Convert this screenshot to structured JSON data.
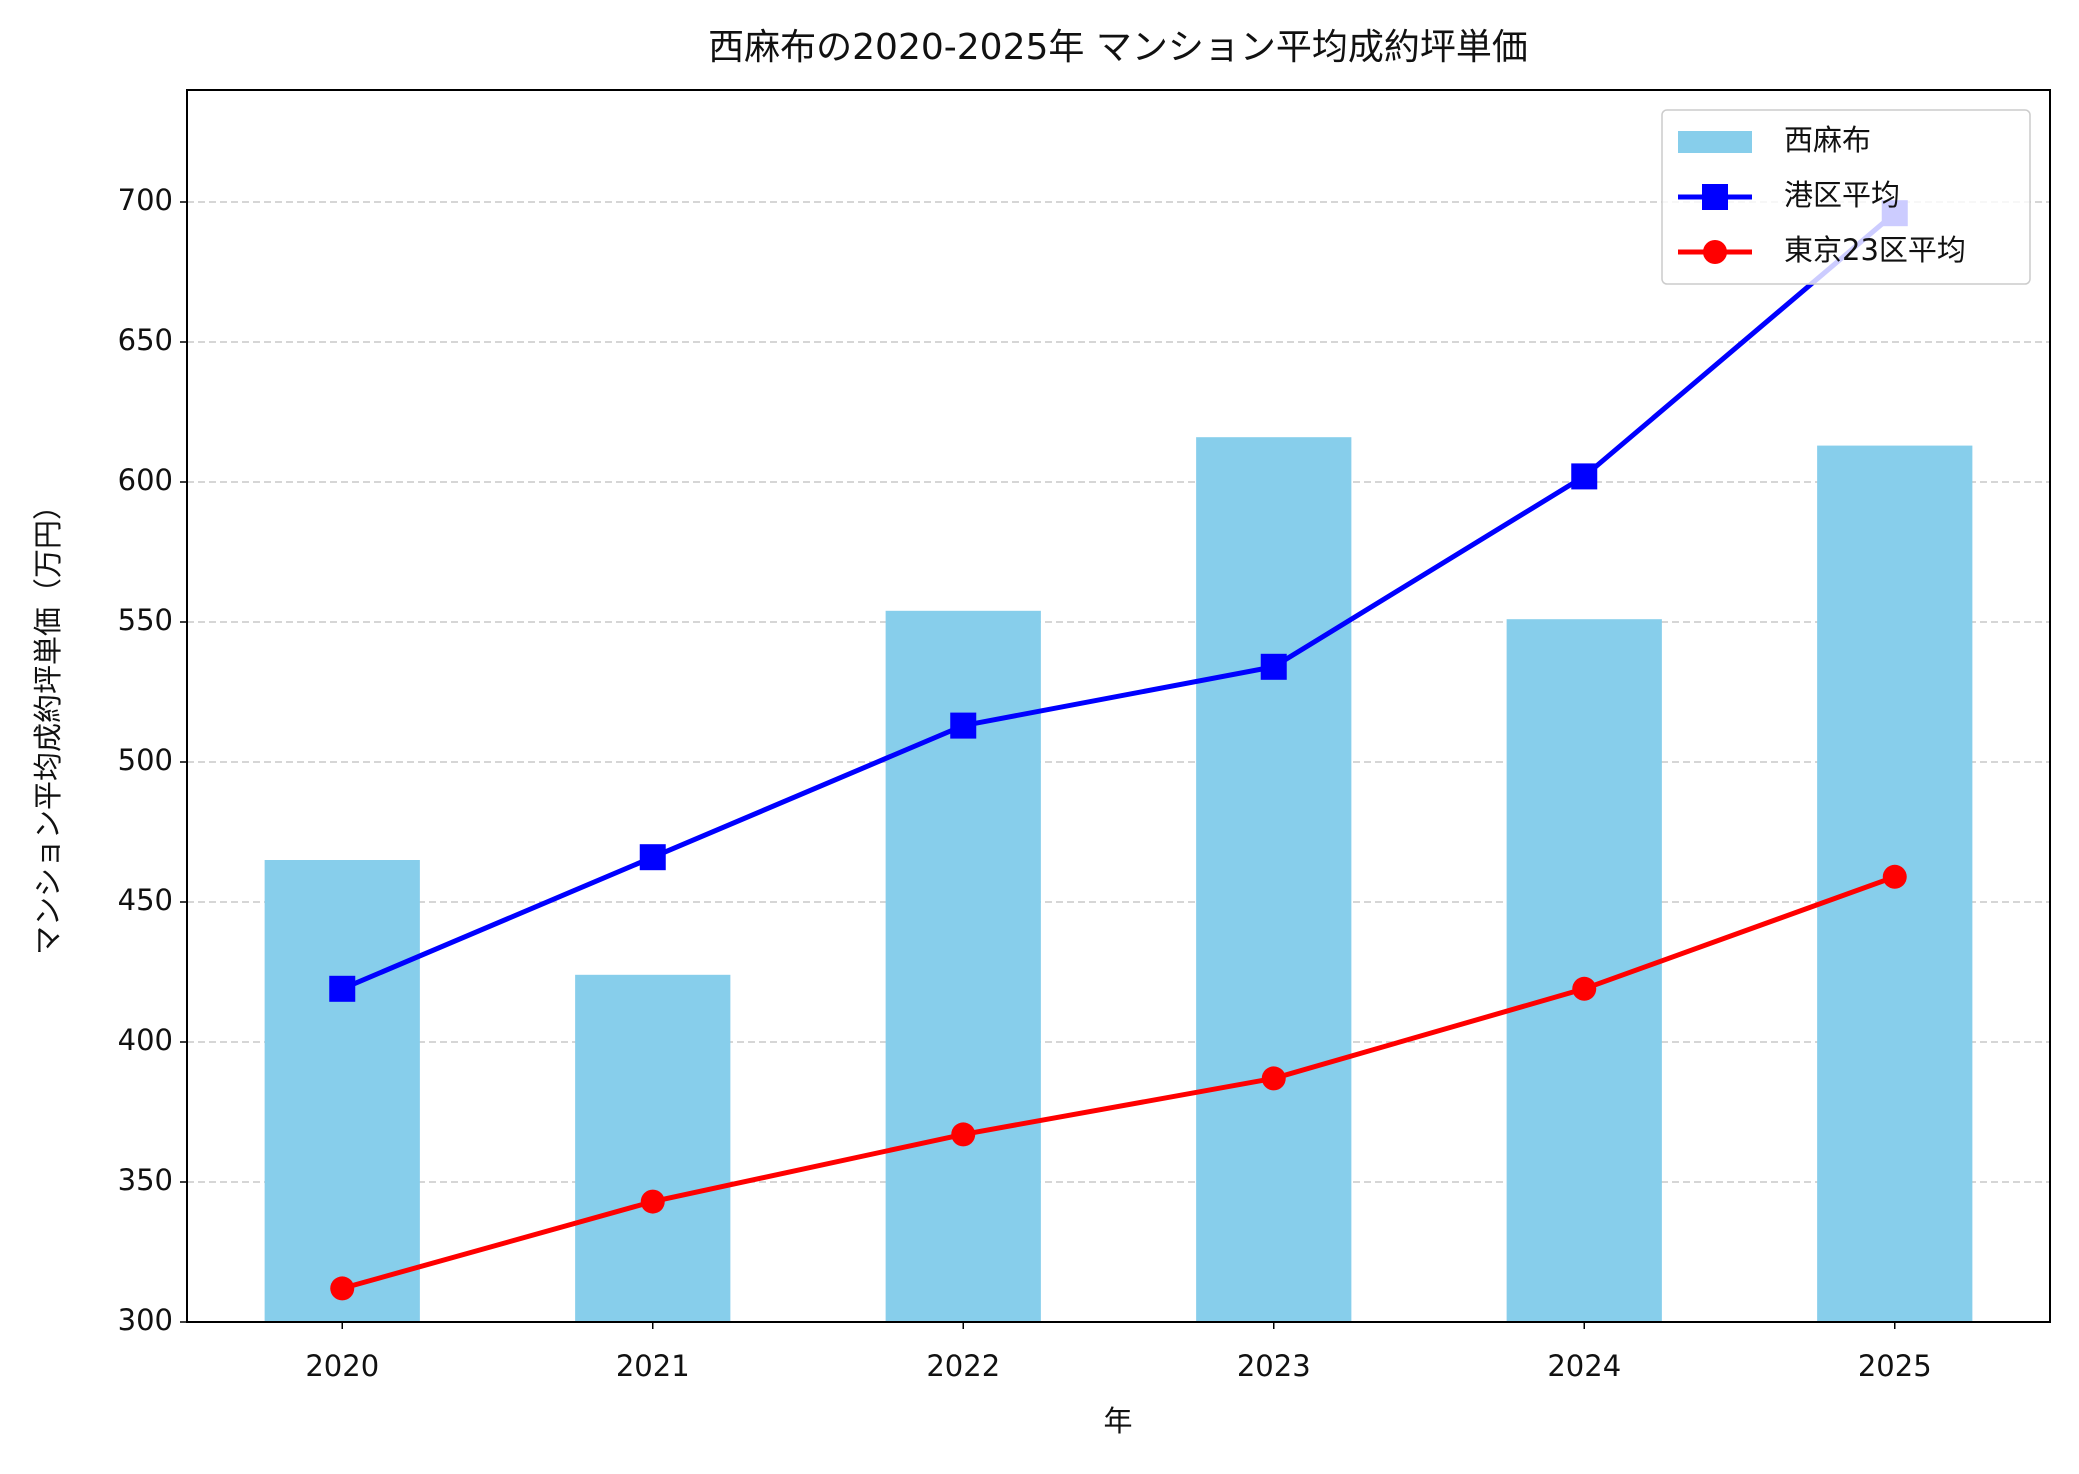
{
  "chart_data": {
    "type": "bar",
    "title": "西麻布の2020-2025年 マンション平均成約坪単価",
    "x_label": "年",
    "y_label": "マンション平均成約坪単価（万円）",
    "categories": [
      "2020",
      "2021",
      "2022",
      "2023",
      "2024",
      "2025"
    ],
    "series": [
      {
        "name": "西麻布",
        "type": "bar",
        "color": "#87ceeb",
        "values": [
          465,
          424,
          554,
          616,
          551,
          613
        ]
      },
      {
        "name": "港区平均",
        "type": "line",
        "marker": "square",
        "color": "#0000ff",
        "values": [
          419,
          466,
          513,
          534,
          602,
          696
        ]
      },
      {
        "name": "東京23区平均",
        "type": "line",
        "marker": "circle",
        "color": "#ff0000",
        "values": [
          312,
          343,
          367,
          387,
          419,
          459
        ]
      }
    ],
    "ylim": [
      300,
      740
    ],
    "yticks": [
      300,
      350,
      400,
      450,
      500,
      550,
      600,
      650,
      700
    ],
    "grid": true,
    "legend": "upper-right"
  }
}
